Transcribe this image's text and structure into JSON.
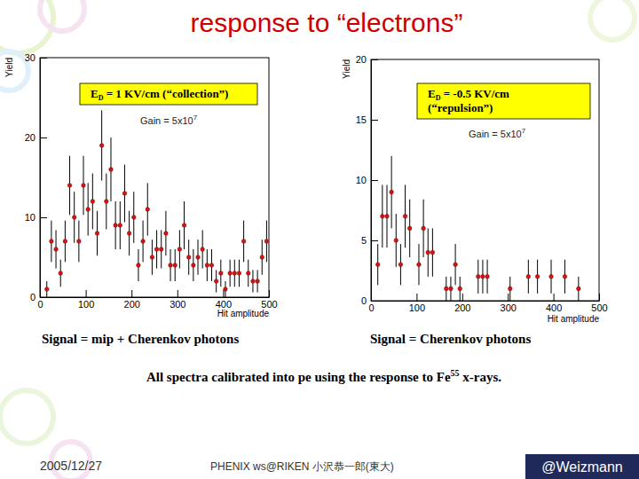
{
  "chart_data": [
    {
      "type": "scatter",
      "ylabel": "Yield",
      "xlabel": "Hit amplitude",
      "xlim": [
        0,
        500
      ],
      "xticks": [
        0,
        100,
        200,
        300,
        400,
        500
      ],
      "ylim": [
        0,
        30
      ],
      "yticks": [
        0,
        10,
        20,
        30
      ],
      "color": "#dd1111",
      "marker": "circle",
      "x": [
        15,
        25,
        35,
        45,
        55,
        65,
        75,
        85,
        95,
        105,
        115,
        125,
        135,
        145,
        155,
        165,
        175,
        185,
        195,
        205,
        215,
        225,
        235,
        245,
        255,
        265,
        275,
        285,
        295,
        305,
        315,
        325,
        335,
        345,
        355,
        365,
        375,
        385,
        395,
        405,
        415,
        425,
        435,
        445,
        455,
        465,
        475,
        485,
        495
      ],
      "values": [
        1,
        7,
        6,
        3,
        7,
        14,
        10,
        7,
        14,
        11,
        12,
        8,
        19,
        12,
        16,
        9,
        9,
        13,
        8,
        10,
        4,
        7,
        11,
        5,
        6,
        6,
        8,
        4,
        4,
        6,
        9,
        5,
        4,
        5,
        6,
        4,
        4,
        2,
        3,
        1,
        3,
        3,
        3,
        7,
        3,
        2,
        2,
        5,
        7
      ],
      "errors": [
        1,
        2.6,
        2.4,
        1.7,
        2.6,
        3.7,
        3.2,
        2.6,
        3.7,
        3.3,
        3.5,
        2.8,
        4.4,
        3.5,
        4,
        3,
        3,
        3.6,
        2.8,
        3.2,
        2,
        2.6,
        3.3,
        2.2,
        2.4,
        2.4,
        2.8,
        2,
        2,
        2.4,
        3,
        2.2,
        2,
        2.2,
        2.4,
        2,
        2,
        1.4,
        1.7,
        1,
        1.7,
        1.7,
        1.7,
        2.6,
        1.7,
        1.4,
        1.4,
        2.2,
        2.6
      ],
      "annotation": {
        "symbol": "E",
        "subscript": "D",
        "lines": [
          " = 1 KV/cm (“collection”)"
        ]
      },
      "gain": {
        "text": "Gain = 5x10",
        "exponent": "7"
      },
      "caption": "Signal = mip + Cherenkov photons"
    },
    {
      "type": "scatter",
      "ylabel": "Yield",
      "xlabel": "Hit amplitude",
      "xlim": [
        0,
        500
      ],
      "xticks": [
        0,
        100,
        200,
        300,
        400,
        500
      ],
      "ylim": [
        0,
        20
      ],
      "yticks": [
        0,
        5,
        10,
        15,
        20
      ],
      "color": "#dd1111",
      "marker": "circle",
      "x": [
        15,
        25,
        35,
        45,
        55,
        65,
        75,
        85,
        105,
        115,
        125,
        135,
        165,
        175,
        185,
        195,
        235,
        245,
        255,
        305,
        345,
        365,
        395,
        425,
        455
      ],
      "values": [
        3,
        7,
        7,
        9,
        5,
        3,
        7,
        6,
        3,
        6,
        4,
        4,
        1,
        1,
        3,
        1,
        2,
        2,
        2,
        1,
        2,
        2,
        2,
        2,
        1
      ],
      "errors": [
        1.7,
        2.6,
        2.6,
        3,
        2.2,
        1.7,
        2.6,
        2.4,
        1.7,
        2.4,
        2,
        2,
        1,
        1,
        1.7,
        1,
        1.4,
        1.4,
        1.4,
        1,
        1.4,
        1.4,
        1.4,
        1.4,
        1
      ],
      "annotation": {
        "symbol": "E",
        "subscript": "D",
        "lines": [
          " = -0.5 KV/cm",
          "(“repulsion”)"
        ]
      },
      "gain": {
        "text": "Gain = 5x10",
        "exponent": "7"
      },
      "caption": "Signal = Cherenkov photons"
    }
  ],
  "slide": {
    "title": "response to “electrons”",
    "note": {
      "text": "All spectra calibrated into pe using the response to Fe",
      "superscript": "55",
      "after": " x-rays."
    },
    "date": "2005/12/27",
    "footer": "PHENIX ws@RIKEN 小沢恭一郎(東大)",
    "badge": "@Weizmann"
  }
}
